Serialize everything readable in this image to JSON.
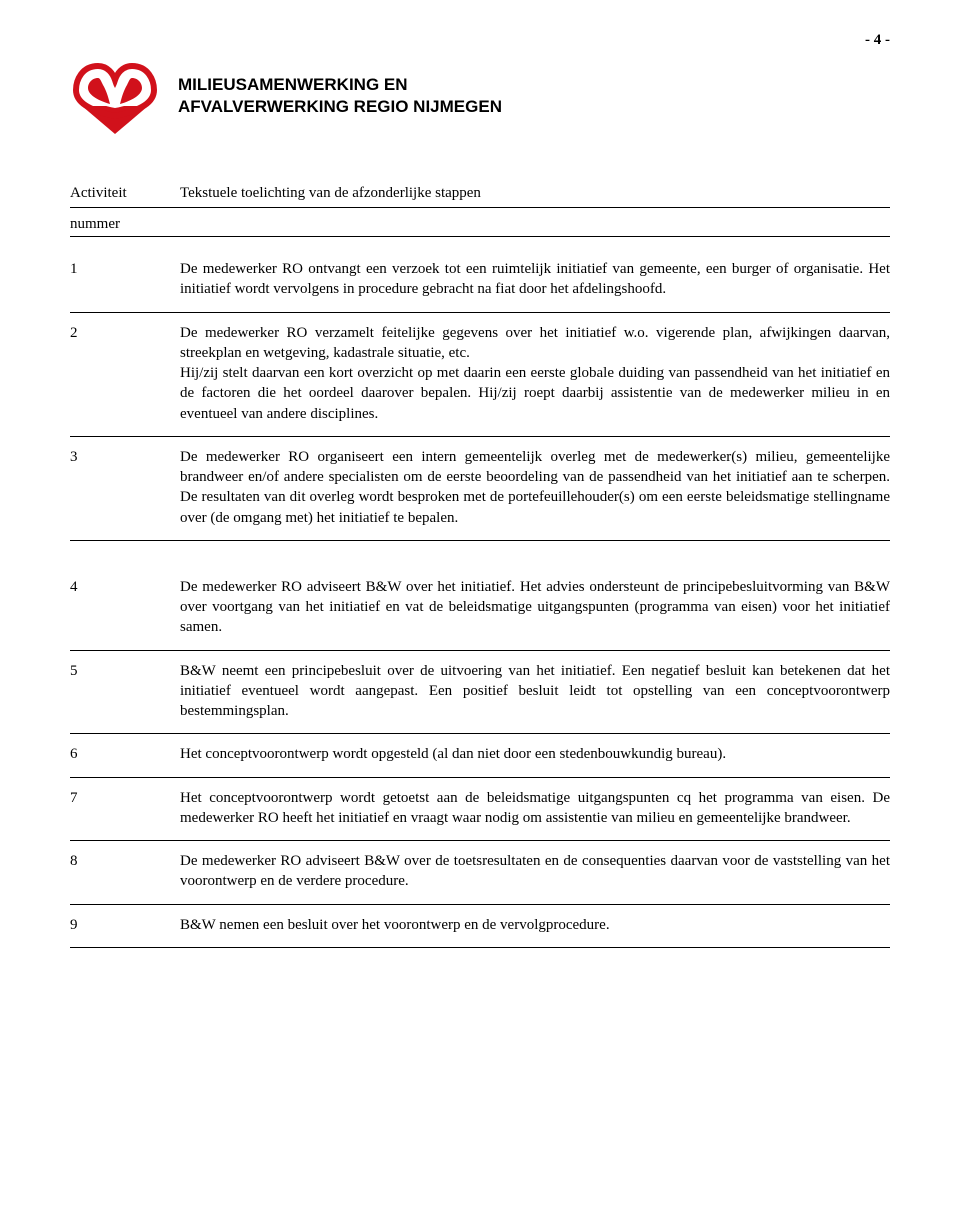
{
  "page_number": "- 4 -",
  "org": {
    "line1": "MILIEUSAMENWERKING EN",
    "line2": "AFVALVERWERKING REGIO NIJMEGEN"
  },
  "logo": {
    "primary_color": "#d1111b",
    "accent_color": "#ffffff"
  },
  "headers": {
    "col1_line1": "Activiteit",
    "col1_line2": "nummer",
    "col2": "Tekstuele toelichting van de afzonderlijke stappen"
  },
  "rows": [
    {
      "num": "1",
      "text": "De medewerker RO ontvangt een verzoek tot een ruimtelijk initiatief van gemeente, een burger of organisatie. Het initiatief wordt vervolgens in procedure gebracht na fiat door het afdelingshoofd."
    },
    {
      "num": "2",
      "text": "De medewerker RO verzamelt feitelijke gegevens over het initiatief w.o. vigerende plan, afwijkingen daarvan, streekplan en wetgeving, kadastrale situatie, etc.\nHij/zij stelt daarvan een kort overzicht op met daarin een eerste globale duiding van passendheid van het initiatief en de factoren die het oordeel daarover bepalen. Hij/zij roept daarbij assistentie van de medewerker milieu in en eventueel van andere disciplines."
    },
    {
      "num": "3",
      "text": "De medewerker RO organiseert een intern gemeentelijk overleg met de medewerker(s) milieu, gemeentelijke brandweer en/of andere specialisten om de eerste beoordeling van de passendheid van het initiatief aan te scherpen. De resultaten van dit overleg wordt besproken met de portefeuillehouder(s) om een eerste beleidsmatige stellingname over (de omgang met) het initiatief te bepalen."
    },
    {
      "num": "4",
      "text": "De medewerker RO adviseert B&W over het initiatief. Het advies ondersteunt de principebesluitvorming van B&W over voortgang van het initiatief en vat de beleidsmatige uitgangspunten (programma van eisen) voor het initiatief samen."
    },
    {
      "num": "5",
      "text": "B&W neemt een principebesluit over de uitvoering van het initiatief. Een negatief besluit kan betekenen dat het initiatief eventueel wordt aangepast. Een positief besluit leidt tot opstelling van een conceptvoorontwerp bestemmingsplan."
    },
    {
      "num": "6",
      "text": "Het conceptvoorontwerp wordt opgesteld (al dan niet door een stedenbouwkundig bureau)."
    },
    {
      "num": "7",
      "text": "Het conceptvoorontwerp wordt getoetst aan de beleidsmatige uitgangspunten cq het programma van eisen. De medewerker RO heeft het initiatief en vraagt waar nodig om assistentie van milieu en gemeentelijke brandweer."
    },
    {
      "num": "8",
      "text": "De medewerker RO adviseert B&W over de toetsresultaten en de consequenties daarvan voor de vaststelling van het voorontwerp en de verdere procedure."
    },
    {
      "num": "9",
      "text": "B&W nemen een besluit over het voorontwerp en de vervolgprocedure."
    }
  ]
}
